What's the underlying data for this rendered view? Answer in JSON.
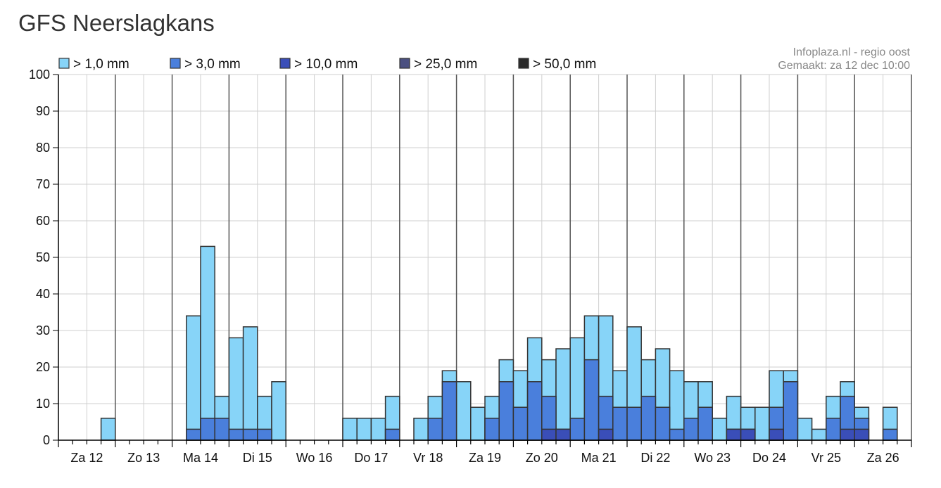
{
  "title": "GFS Neerslagkans",
  "credit": [
    "Infoplaza.nl - regio oost",
    "Gemaakt: za 12 dec 10:00"
  ],
  "chart_data": {
    "type": "bar",
    "stacked": "overlapping",
    "title": "GFS Neerslagkans",
    "xlabel": "",
    "ylabel": "",
    "ylim": [
      0,
      100
    ],
    "yticks": [
      0,
      10,
      20,
      30,
      40,
      50,
      60,
      70,
      80,
      90,
      100
    ],
    "grid": true,
    "legend_position": "top",
    "day_labels": [
      "Za 12",
      "Zo 13",
      "Ma 14",
      "Di 15",
      "Wo 16",
      "Do 17",
      "Vr 18",
      "Za 19",
      "Zo 20",
      "Ma 21",
      "Di 22",
      "Wo 23",
      "Do 24",
      "Vr 25",
      "Za 26"
    ],
    "bars_per_day": 4,
    "series": [
      {
        "name": "> 1,0 mm",
        "color": "#87d4f8",
        "values": [
          0,
          0,
          0,
          6,
          0,
          0,
          0,
          0,
          0,
          34,
          53,
          12,
          28,
          31,
          12,
          16,
          0,
          0,
          0,
          0,
          6,
          6,
          6,
          12,
          0,
          6,
          12,
          19,
          16,
          9,
          12,
          22,
          19,
          28,
          22,
          25,
          28,
          34,
          34,
          19,
          31,
          22,
          25,
          19,
          16,
          16,
          6,
          12,
          9,
          9,
          19,
          19,
          6,
          3,
          12,
          16,
          9,
          0,
          9,
          0
        ]
      },
      {
        "name": "> 3,0 mm",
        "color": "#4a7fdc",
        "values": [
          0,
          0,
          0,
          0,
          0,
          0,
          0,
          0,
          0,
          3,
          6,
          6,
          3,
          3,
          3,
          0,
          0,
          0,
          0,
          0,
          0,
          0,
          0,
          3,
          0,
          0,
          6,
          16,
          0,
          0,
          6,
          16,
          9,
          16,
          12,
          3,
          6,
          22,
          12,
          9,
          9,
          12,
          9,
          3,
          6,
          9,
          0,
          3,
          3,
          0,
          9,
          16,
          0,
          0,
          6,
          12,
          6,
          0,
          3,
          0
        ]
      },
      {
        "name": "> 10,0 mm",
        "color": "#3a4eb8",
        "values": [
          0,
          0,
          0,
          0,
          0,
          0,
          0,
          0,
          0,
          0,
          0,
          0,
          0,
          0,
          0,
          0,
          0,
          0,
          0,
          0,
          0,
          0,
          0,
          0,
          0,
          0,
          0,
          0,
          0,
          0,
          0,
          0,
          0,
          0,
          3,
          3,
          0,
          0,
          3,
          0,
          0,
          0,
          0,
          0,
          0,
          0,
          0,
          3,
          3,
          0,
          3,
          0,
          0,
          0,
          0,
          3,
          3,
          0,
          0,
          0
        ]
      },
      {
        "name": "> 25,0 mm",
        "color": "#4b5080",
        "values": []
      },
      {
        "name": "> 50,0 mm",
        "color": "#2a2a2a",
        "values": []
      }
    ]
  }
}
